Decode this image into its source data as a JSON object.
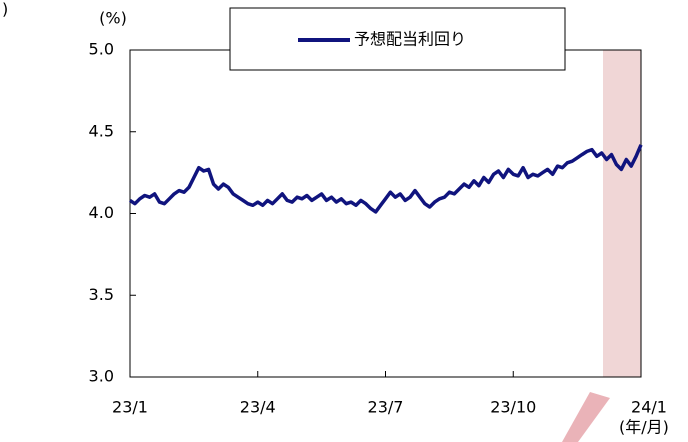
{
  "corner_text": ")",
  "chart_data": {
    "type": "line",
    "y_axis_label": "(%)",
    "x_axis_label": "(年/月)",
    "categories": [
      "23/1",
      null,
      null,
      null,
      null,
      null,
      null,
      null,
      null,
      null,
      null,
      null,
      null,
      null,
      null,
      null,
      null,
      null,
      null,
      null,
      null,
      null,
      null,
      null,
      null,
      null,
      "23/4",
      null,
      null,
      null,
      null,
      null,
      null,
      null,
      null,
      null,
      null,
      null,
      null,
      null,
      null,
      null,
      null,
      null,
      null,
      null,
      null,
      null,
      null,
      null,
      null,
      null,
      "23/7",
      null,
      null,
      null,
      null,
      null,
      null,
      null,
      null,
      null,
      null,
      null,
      null,
      null,
      null,
      null,
      null,
      null,
      null,
      null,
      null,
      null,
      null,
      null,
      null,
      null,
      "23/10",
      null,
      null,
      null,
      null,
      null,
      null,
      null,
      null,
      null,
      null,
      null,
      null,
      null,
      null,
      null,
      null,
      null,
      null,
      null,
      null,
      null,
      null,
      null,
      null,
      null,
      "24/1"
    ],
    "series": [
      {
        "name": "予想配当利回り",
        "color": "#10147e",
        "values": [
          4.08,
          4.06,
          4.09,
          4.11,
          4.1,
          4.12,
          4.07,
          4.06,
          4.09,
          4.12,
          4.14,
          4.13,
          4.16,
          4.22,
          4.28,
          4.26,
          4.27,
          4.18,
          4.15,
          4.18,
          4.16,
          4.12,
          4.1,
          4.08,
          4.06,
          4.05,
          4.07,
          4.05,
          4.08,
          4.06,
          4.09,
          4.12,
          4.08,
          4.07,
          4.1,
          4.09,
          4.11,
          4.08,
          4.1,
          4.12,
          4.08,
          4.1,
          4.07,
          4.09,
          4.06,
          4.07,
          4.05,
          4.08,
          4.06,
          4.03,
          4.01,
          4.05,
          4.09,
          4.13,
          4.1,
          4.12,
          4.08,
          4.1,
          4.14,
          4.1,
          4.06,
          4.04,
          4.07,
          4.09,
          4.1,
          4.13,
          4.12,
          4.15,
          4.18,
          4.16,
          4.2,
          4.17,
          4.22,
          4.19,
          4.24,
          4.26,
          4.22,
          4.27,
          4.24,
          4.23,
          4.28,
          4.22,
          4.24,
          4.23,
          4.25,
          4.27,
          4.24,
          4.29,
          4.28,
          4.31,
          4.32,
          4.34,
          4.36,
          4.38,
          4.39,
          4.35,
          4.37,
          4.33,
          4.36,
          4.3,
          4.27,
          4.33,
          4.29,
          4.35,
          4.42
        ]
      }
    ],
    "ylim": [
      3,
      5
    ],
    "yticks": [
      {
        "value": 3,
        "label": "3.0"
      },
      3.5,
      {
        "value": 4,
        "label": "4.0"
      },
      4.5,
      {
        "value": 5,
        "label": "5.0"
      }
    ]
  }
}
